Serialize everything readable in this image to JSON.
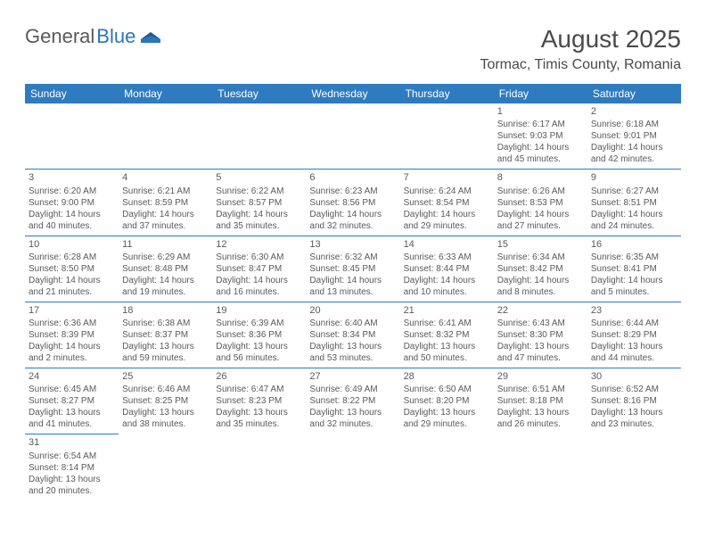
{
  "logo": {
    "general": "General",
    "blue": "Blue"
  },
  "title": "August 2025",
  "location": "Tormac, Timis County, Romania",
  "header_bg": "#2f7bbf",
  "header_text": "#ffffff",
  "weekdays": [
    "Sunday",
    "Monday",
    "Tuesday",
    "Wednesday",
    "Thursday",
    "Friday",
    "Saturday"
  ],
  "weeks": [
    [
      null,
      null,
      null,
      null,
      null,
      {
        "n": "1",
        "sr": "Sunrise: 6:17 AM",
        "ss": "Sunset: 9:03 PM",
        "dl1": "Daylight: 14 hours",
        "dl2": "and 45 minutes."
      },
      {
        "n": "2",
        "sr": "Sunrise: 6:18 AM",
        "ss": "Sunset: 9:01 PM",
        "dl1": "Daylight: 14 hours",
        "dl2": "and 42 minutes."
      }
    ],
    [
      {
        "n": "3",
        "sr": "Sunrise: 6:20 AM",
        "ss": "Sunset: 9:00 PM",
        "dl1": "Daylight: 14 hours",
        "dl2": "and 40 minutes."
      },
      {
        "n": "4",
        "sr": "Sunrise: 6:21 AM",
        "ss": "Sunset: 8:59 PM",
        "dl1": "Daylight: 14 hours",
        "dl2": "and 37 minutes."
      },
      {
        "n": "5",
        "sr": "Sunrise: 6:22 AM",
        "ss": "Sunset: 8:57 PM",
        "dl1": "Daylight: 14 hours",
        "dl2": "and 35 minutes."
      },
      {
        "n": "6",
        "sr": "Sunrise: 6:23 AM",
        "ss": "Sunset: 8:56 PM",
        "dl1": "Daylight: 14 hours",
        "dl2": "and 32 minutes."
      },
      {
        "n": "7",
        "sr": "Sunrise: 6:24 AM",
        "ss": "Sunset: 8:54 PM",
        "dl1": "Daylight: 14 hours",
        "dl2": "and 29 minutes."
      },
      {
        "n": "8",
        "sr": "Sunrise: 6:26 AM",
        "ss": "Sunset: 8:53 PM",
        "dl1": "Daylight: 14 hours",
        "dl2": "and 27 minutes."
      },
      {
        "n": "9",
        "sr": "Sunrise: 6:27 AM",
        "ss": "Sunset: 8:51 PM",
        "dl1": "Daylight: 14 hours",
        "dl2": "and 24 minutes."
      }
    ],
    [
      {
        "n": "10",
        "sr": "Sunrise: 6:28 AM",
        "ss": "Sunset: 8:50 PM",
        "dl1": "Daylight: 14 hours",
        "dl2": "and 21 minutes."
      },
      {
        "n": "11",
        "sr": "Sunrise: 6:29 AM",
        "ss": "Sunset: 8:48 PM",
        "dl1": "Daylight: 14 hours",
        "dl2": "and 19 minutes."
      },
      {
        "n": "12",
        "sr": "Sunrise: 6:30 AM",
        "ss": "Sunset: 8:47 PM",
        "dl1": "Daylight: 14 hours",
        "dl2": "and 16 minutes."
      },
      {
        "n": "13",
        "sr": "Sunrise: 6:32 AM",
        "ss": "Sunset: 8:45 PM",
        "dl1": "Daylight: 14 hours",
        "dl2": "and 13 minutes."
      },
      {
        "n": "14",
        "sr": "Sunrise: 6:33 AM",
        "ss": "Sunset: 8:44 PM",
        "dl1": "Daylight: 14 hours",
        "dl2": "and 10 minutes."
      },
      {
        "n": "15",
        "sr": "Sunrise: 6:34 AM",
        "ss": "Sunset: 8:42 PM",
        "dl1": "Daylight: 14 hours",
        "dl2": "and 8 minutes."
      },
      {
        "n": "16",
        "sr": "Sunrise: 6:35 AM",
        "ss": "Sunset: 8:41 PM",
        "dl1": "Daylight: 14 hours",
        "dl2": "and 5 minutes."
      }
    ],
    [
      {
        "n": "17",
        "sr": "Sunrise: 6:36 AM",
        "ss": "Sunset: 8:39 PM",
        "dl1": "Daylight: 14 hours",
        "dl2": "and 2 minutes."
      },
      {
        "n": "18",
        "sr": "Sunrise: 6:38 AM",
        "ss": "Sunset: 8:37 PM",
        "dl1": "Daylight: 13 hours",
        "dl2": "and 59 minutes."
      },
      {
        "n": "19",
        "sr": "Sunrise: 6:39 AM",
        "ss": "Sunset: 8:36 PM",
        "dl1": "Daylight: 13 hours",
        "dl2": "and 56 minutes."
      },
      {
        "n": "20",
        "sr": "Sunrise: 6:40 AM",
        "ss": "Sunset: 8:34 PM",
        "dl1": "Daylight: 13 hours",
        "dl2": "and 53 minutes."
      },
      {
        "n": "21",
        "sr": "Sunrise: 6:41 AM",
        "ss": "Sunset: 8:32 PM",
        "dl1": "Daylight: 13 hours",
        "dl2": "and 50 minutes."
      },
      {
        "n": "22",
        "sr": "Sunrise: 6:43 AM",
        "ss": "Sunset: 8:30 PM",
        "dl1": "Daylight: 13 hours",
        "dl2": "and 47 minutes."
      },
      {
        "n": "23",
        "sr": "Sunrise: 6:44 AM",
        "ss": "Sunset: 8:29 PM",
        "dl1": "Daylight: 13 hours",
        "dl2": "and 44 minutes."
      }
    ],
    [
      {
        "n": "24",
        "sr": "Sunrise: 6:45 AM",
        "ss": "Sunset: 8:27 PM",
        "dl1": "Daylight: 13 hours",
        "dl2": "and 41 minutes."
      },
      {
        "n": "25",
        "sr": "Sunrise: 6:46 AM",
        "ss": "Sunset: 8:25 PM",
        "dl1": "Daylight: 13 hours",
        "dl2": "and 38 minutes."
      },
      {
        "n": "26",
        "sr": "Sunrise: 6:47 AM",
        "ss": "Sunset: 8:23 PM",
        "dl1": "Daylight: 13 hours",
        "dl2": "and 35 minutes."
      },
      {
        "n": "27",
        "sr": "Sunrise: 6:49 AM",
        "ss": "Sunset: 8:22 PM",
        "dl1": "Daylight: 13 hours",
        "dl2": "and 32 minutes."
      },
      {
        "n": "28",
        "sr": "Sunrise: 6:50 AM",
        "ss": "Sunset: 8:20 PM",
        "dl1": "Daylight: 13 hours",
        "dl2": "and 29 minutes."
      },
      {
        "n": "29",
        "sr": "Sunrise: 6:51 AM",
        "ss": "Sunset: 8:18 PM",
        "dl1": "Daylight: 13 hours",
        "dl2": "and 26 minutes."
      },
      {
        "n": "30",
        "sr": "Sunrise: 6:52 AM",
        "ss": "Sunset: 8:16 PM",
        "dl1": "Daylight: 13 hours",
        "dl2": "and 23 minutes."
      }
    ],
    [
      {
        "n": "31",
        "sr": "Sunrise: 6:54 AM",
        "ss": "Sunset: 8:14 PM",
        "dl1": "Daylight: 13 hours",
        "dl2": "and 20 minutes."
      },
      null,
      null,
      null,
      null,
      null,
      null
    ]
  ]
}
